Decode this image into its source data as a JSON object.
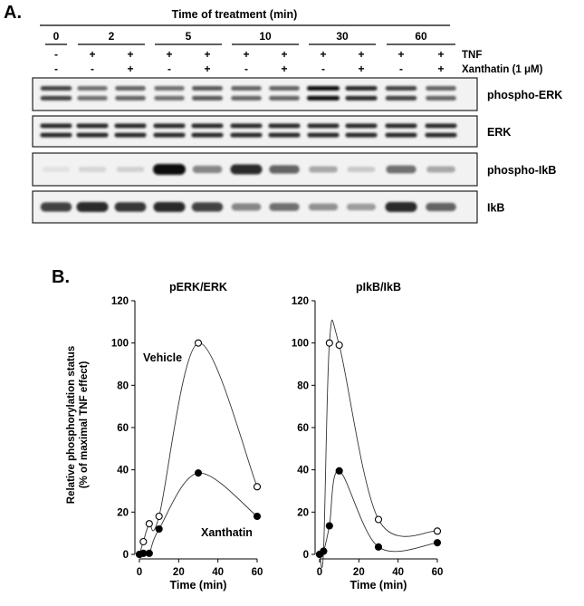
{
  "panel_a": {
    "label": "A.",
    "header_title": "Time of treatment (min)",
    "time_points": [
      "0",
      "2",
      "5",
      "10",
      "30",
      "60"
    ],
    "tnf_label": "TNF",
    "xanthatin_label": "Xanthatin (1 μM)",
    "tnf_row": [
      "-",
      "+",
      "+",
      "+",
      "+",
      "+",
      "+",
      "+",
      "+",
      "+",
      "+"
    ],
    "xanthatin_row": [
      "-",
      "-",
      "+",
      "-",
      "+",
      "-",
      "+",
      "-",
      "+",
      "-",
      "+"
    ],
    "blots": [
      {
        "label": "phospho-ERK",
        "intensity": [
          0.75,
          0.55,
          0.6,
          0.55,
          0.65,
          0.6,
          0.6,
          1.0,
          0.85,
          0.75,
          0.6
        ],
        "bands": 2
      },
      {
        "label": "ERK",
        "intensity": [
          0.85,
          0.85,
          0.85,
          0.85,
          0.85,
          0.85,
          0.85,
          0.85,
          0.85,
          0.85,
          0.85
        ],
        "bands": 2
      },
      {
        "label": "phospho-IkB",
        "intensity": [
          0.05,
          0.1,
          0.12,
          1.0,
          0.45,
          0.85,
          0.6,
          0.3,
          0.15,
          0.55,
          0.3
        ],
        "bands": 1
      },
      {
        "label": "IkB",
        "intensity": [
          0.75,
          0.85,
          0.8,
          0.85,
          0.75,
          0.45,
          0.55,
          0.4,
          0.35,
          0.85,
          0.6
        ],
        "bands": 1
      }
    ]
  },
  "panel_b": {
    "label": "B.",
    "ylabel_line1": "Relative phosphorylation status",
    "ylabel_line2": "(% of maximal TNF effect)"
  },
  "chart_data": [
    {
      "type": "scatter",
      "title": "pERK/ERK",
      "xlabel": "Time (min)",
      "ylabel": "Relative phosphorylation status (% of maximal TNF effect)",
      "xlim": [
        0,
        60
      ],
      "ylim": [
        0,
        120
      ],
      "xticks": [
        0,
        20,
        40,
        60
      ],
      "yticks": [
        0,
        20,
        40,
        60,
        80,
        100,
        120
      ],
      "series": [
        {
          "name": "Vehicle",
          "marker": "open-circle",
          "x": [
            0,
            2,
            5,
            10,
            30,
            60
          ],
          "y": [
            0,
            6,
            14.5,
            18,
            100,
            32
          ]
        },
        {
          "name": "Xanthatin",
          "marker": "filled-circle",
          "x": [
            0,
            2,
            5,
            10,
            30,
            60
          ],
          "y": [
            0,
            0.5,
            0.5,
            12,
            38.5,
            18
          ]
        }
      ]
    },
    {
      "type": "scatter",
      "title": "pIkB/IkB",
      "xlabel": "Time (min)",
      "ylabel": "",
      "xlim": [
        0,
        60
      ],
      "ylim": [
        0,
        120
      ],
      "xticks": [
        0,
        20,
        40,
        60
      ],
      "yticks": [
        0,
        20,
        40,
        60,
        80,
        100,
        120
      ],
      "series": [
        {
          "name": "Vehicle",
          "marker": "open-circle",
          "x": [
            0,
            2,
            5,
            10,
            30,
            60
          ],
          "y": [
            0,
            1.5,
            100,
            99,
            16.5,
            11
          ]
        },
        {
          "name": "Xanthatin",
          "marker": "filled-circle",
          "x": [
            0,
            2,
            5,
            10,
            30,
            60
          ],
          "y": [
            0,
            1.5,
            13.5,
            39.5,
            3.5,
            5.5
          ]
        }
      ]
    }
  ]
}
